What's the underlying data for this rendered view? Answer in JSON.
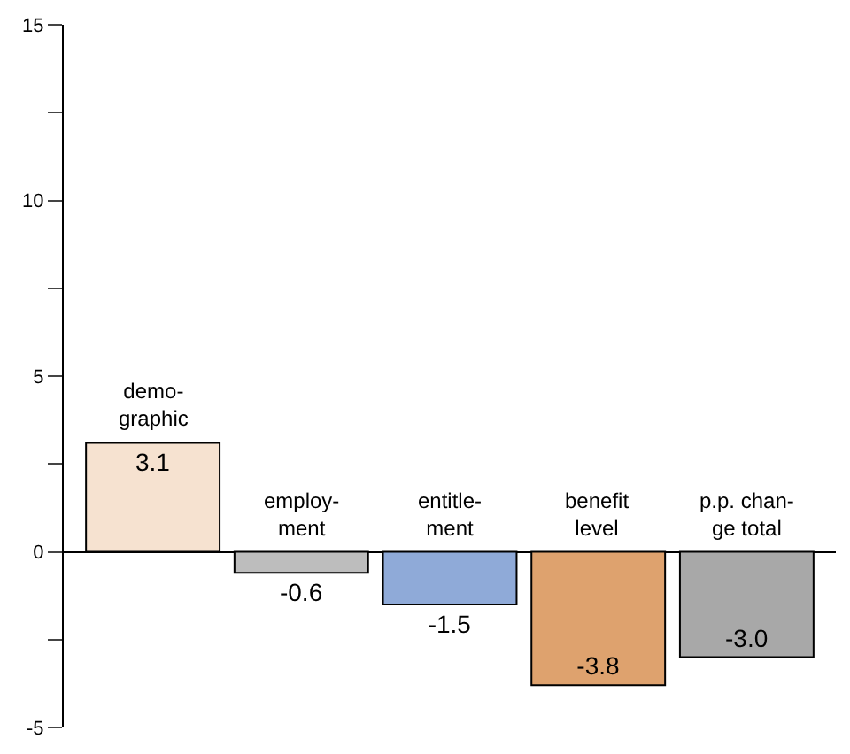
{
  "chart_data": {
    "type": "bar",
    "categories": [
      "demo-\ngraphic",
      "employ-\nment",
      "entitle-\nment",
      "benefit\nlevel",
      "p.p. chan-\nge total"
    ],
    "values": [
      3.1,
      -0.6,
      -1.5,
      -3.8,
      -3.0
    ],
    "colors": [
      "#f6e2d0",
      "#bdbdbd",
      "#8faad8",
      "#dea26e",
      "#a8a8a8"
    ],
    "ylim": [
      -5,
      15
    ],
    "yticks": [
      -5,
      {
        "value": -2.5,
        "label": null
      },
      0,
      {
        "value": 2.5,
        "label": null
      },
      5,
      {
        "value": 7.5,
        "label": null
      },
      10,
      {
        "value": 12.5,
        "label": null
      },
      15
    ],
    "value_labels": [
      "3.1",
      "-0.6",
      "-1.5",
      "-3.8",
      "-3.0"
    ]
  }
}
